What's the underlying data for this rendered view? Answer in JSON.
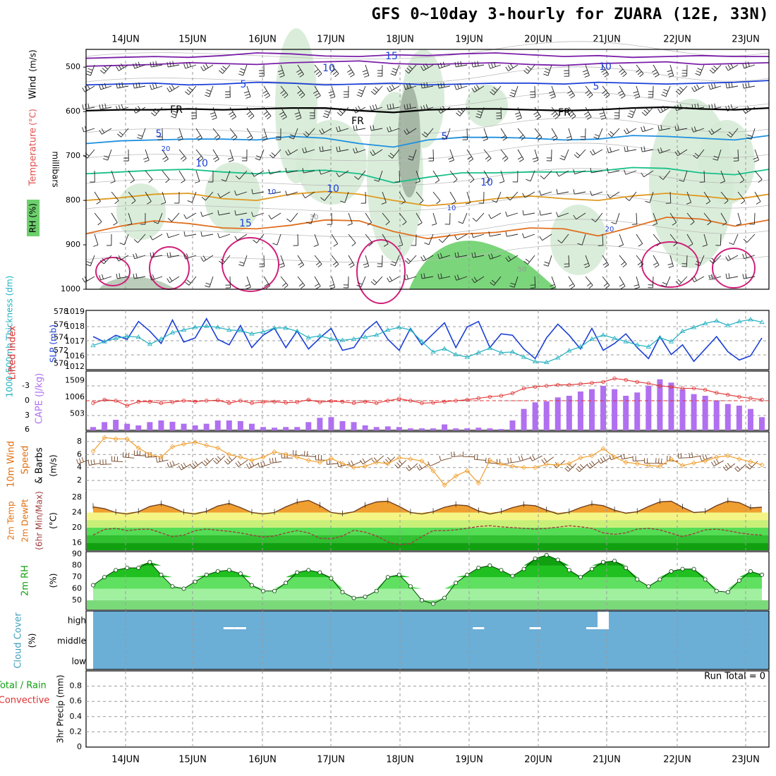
{
  "title": "GFS 0~10day 3-hourly for ZUARA (12E, 33N)",
  "colors": {
    "rh_fill": "#6dd06d",
    "temp_purple": "#7a1fa8",
    "temp_blue": "#1b3fd6",
    "temp_freezing": "#000000",
    "temp_lightblue": "#1e90e0",
    "temp_green": "#18c08a",
    "temp_orange": "#e09a20",
    "temp_darkorange": "#e07020",
    "temp_magenta": "#d0207a",
    "slp_line": "#1b3fd6",
    "thickness_line": "#20b0c0",
    "lifted_index": "#e03030",
    "cape_bars": "#b070f0",
    "wind_speed": "#f0a030",
    "barbs": "#704020",
    "temp_fill": "#f0a030",
    "dewpt_line": "#a04040",
    "rh2m_fill": "#10c010",
    "cloud_bg": "#6baed6",
    "grid": "#999999"
  },
  "chart_data": [
    {
      "panel": "upper-air",
      "type": "contour",
      "x_ticks": [
        "14JUN",
        "15JUN",
        "16JUN",
        "17JUN",
        "18JUN",
        "19JUN",
        "20JUN",
        "21JUN",
        "22JUN",
        "23JUN"
      ],
      "ylabel_parts": [
        "RH (%)",
        "Temperature",
        "(°C)",
        "Wind",
        "(m/s)"
      ],
      "ylabel_units": "millibars",
      "y_ticks": [
        500,
        600,
        700,
        800,
        900,
        1000
      ],
      "ylim": [
        460,
        1000
      ],
      "contour_labels": [
        "15",
        "10",
        "10",
        "5",
        "5",
        "FR",
        "FR",
        "FR",
        "5",
        "5",
        "10",
        "10",
        "10",
        "15",
        "20",
        "20",
        "10",
        "10",
        "30",
        "50",
        "30"
      ],
      "isotherms": [
        {
          "label": "15",
          "p": [
            480,
            478,
            476,
            478,
            474,
            468,
            470,
            475,
            476,
            472,
            474,
            470,
            468,
            472,
            476,
            474,
            478,
            476,
            474,
            476,
            476
          ]
        },
        {
          "label": "10",
          "p": [
            498,
            496,
            494,
            490,
            492,
            494,
            490,
            488,
            486,
            492,
            494,
            492,
            490,
            494,
            496,
            492,
            490,
            488,
            494,
            492,
            490
          ]
        },
        {
          "label": "5",
          "p": [
            540,
            538,
            536,
            540,
            538,
            534,
            536,
            540,
            538,
            536,
            540,
            538,
            536,
            536,
            538,
            534,
            536,
            538,
            536,
            534,
            530
          ]
        },
        {
          "label": "FR",
          "p": [
            598,
            596,
            596,
            594,
            596,
            594,
            592,
            592,
            598,
            602,
            596,
            594,
            594,
            596,
            598,
            596,
            592,
            590,
            594,
            596,
            592
          ]
        },
        {
          "label": "5",
          "p": [
            672,
            666,
            664,
            662,
            662,
            664,
            656,
            660,
            672,
            680,
            664,
            658,
            658,
            660,
            664,
            662,
            654,
            656,
            660,
            664,
            654
          ]
        },
        {
          "label": "10",
          "p": [
            740,
            736,
            732,
            730,
            736,
            740,
            734,
            732,
            740,
            760,
            748,
            738,
            738,
            736,
            736,
            734,
            726,
            728,
            738,
            742,
            730
          ]
        },
        {
          "label": "15",
          "p": [
            800,
            794,
            786,
            784,
            796,
            800,
            786,
            780,
            786,
            800,
            812,
            806,
            796,
            790,
            796,
            800,
            790,
            784,
            790,
            798,
            786
          ]
        },
        {
          "label": "20",
          "p": [
            875,
            858,
            846,
            852,
            862,
            864,
            856,
            844,
            846,
            870,
            886,
            876,
            872,
            862,
            864,
            880,
            860,
            838,
            842,
            858,
            844
          ]
        }
      ]
    },
    {
      "panel": "slp-thickness",
      "type": "line",
      "ylabel_left": "1000-500mb Thickness (dm)",
      "ylabel_right": "SLP (mb)",
      "y_ticks_left": [
        570,
        572,
        574,
        576,
        578
      ],
      "y_ticks_right": [
        1012,
        1016,
        1017,
        1018,
        1019
      ],
      "series": [
        {
          "name": "SLP (mb)",
          "values": [
            1017.2,
            1016.8,
            1017.3,
            1017.0,
            1018.3,
            1017.6,
            1016.7,
            1018.4,
            1016.8,
            1017.1,
            1018.5,
            1017.0,
            1016.6,
            1018.0,
            1016.4,
            1017.3,
            1017.8,
            1016.4,
            1017.6,
            1016.3,
            1017.1,
            1017.8,
            1016.2,
            1016.4,
            1017.6,
            1018.3,
            1017.0,
            1016.2,
            1017.8,
            1016.6,
            1017.4,
            1018.2,
            1016.4,
            1017.9,
            1018.3,
            1016.4,
            1017.4,
            1017.3,
            1016.3,
            1015.6,
            1017.1,
            1018.1,
            1017.3,
            1016.3,
            1017.8,
            1016.2,
            1016.7,
            1017.4,
            1016.4,
            1015.6,
            1017.2,
            1015.9,
            1016.6,
            1015.4,
            1016.3,
            1017.2,
            1016.1,
            1015.5,
            1015.8,
            1017.1
          ]
        },
        {
          "name": "Thickness (dm)",
          "values": [
            572.8,
            573.4,
            573.9,
            574.2,
            574.1,
            573.0,
            573.8,
            574.8,
            575.2,
            575.6,
            575.8,
            575.6,
            575.2,
            575.1,
            574.6,
            574.9,
            575.5,
            575.5,
            575.0,
            574.0,
            574.3,
            573.8,
            573.6,
            573.8,
            574.1,
            574.4,
            575.2,
            575.6,
            575.2,
            573.4,
            571.8,
            572.3,
            571.4,
            571.0,
            571.7,
            572.4,
            571.7,
            571.8,
            571.0,
            570.3,
            570.2,
            570.9,
            572.0,
            572.6,
            573.8,
            574.4,
            573.9,
            573.4,
            572.9,
            572.6,
            574.0,
            573.4,
            575.0,
            575.6,
            576.2,
            576.6,
            575.9,
            576.5,
            576.8,
            576.4
          ]
        }
      ]
    },
    {
      "panel": "cape-li",
      "type": "bar",
      "ylabel_left": "Lifted Index",
      "ylabel_right": "CAPE (J/kg)",
      "y_ticks_left": [
        "-3",
        "0",
        "3",
        "6"
      ],
      "y_ticks_right": [
        503,
        1006,
        1509
      ],
      "series": [
        {
          "name": "CAPE (J/kg)",
          "values": [
            100,
            250,
            320,
            200,
            150,
            250,
            300,
            260,
            200,
            150,
            200,
            300,
            300,
            280,
            200,
            100,
            80,
            100,
            100,
            250,
            380,
            400,
            280,
            250,
            150,
            100,
            120,
            100,
            60,
            60,
            60,
            180,
            60,
            60,
            80,
            60,
            40,
            300,
            650,
            850,
            880,
            1000,
            1050,
            1180,
            1250,
            1350,
            1250,
            1050,
            1150,
            1350,
            1550,
            1450,
            1250,
            1100,
            1050,
            900,
            800,
            750,
            650,
            400
          ]
        },
        {
          "name": "Lifted Index",
          "values": [
            0.5,
            -0.2,
            0,
            1,
            0.2,
            0.2,
            0.5,
            0.3,
            0,
            0.2,
            0,
            -0.1,
            0.5,
            0,
            0.5,
            0.3,
            0.2,
            0.4,
            0.3,
            -0.2,
            0.3,
            0.1,
            0.2,
            0.5,
            0.2,
            0.5,
            0,
            -0.4,
            0,
            0.5,
            0.4,
            0.2,
            0,
            -0.2,
            -0.5,
            -0.8,
            -1,
            -1.5,
            -2.5,
            -2.8,
            -3,
            -3.2,
            -3.2,
            -3.4,
            -3.6,
            -3.8,
            -4.5,
            -4.2,
            -3.8,
            -3.5,
            -3.0,
            -2.8,
            -2.5,
            -2.5,
            -2.2,
            -1.6,
            -1.2,
            -0.8,
            -0.5,
            -0.2
          ]
        }
      ]
    },
    {
      "panel": "wind10m",
      "type": "line",
      "ylabel": "10m Wind Speed & Barbs (m/s)",
      "y_ticks": [
        2,
        4,
        6,
        8
      ],
      "series": [
        {
          "name": "10m Wind Speed (m/s)",
          "values": [
            6.5,
            8.6,
            8.4,
            8.4,
            7.0,
            6.0,
            5.6,
            7.2,
            7.6,
            7.9,
            7.4,
            7.0,
            6.0,
            5.6,
            5.1,
            5.6,
            6.4,
            6.0,
            5.6,
            5.1,
            4.8,
            5.4,
            4.6,
            4.0,
            4.2,
            4.8,
            4.6,
            5.5,
            5.3,
            5.0,
            3.5,
            1.3,
            2.7,
            3.5,
            1.6,
            5.1,
            4.5,
            4.2,
            4.0,
            4.0,
            4.5,
            4.4,
            4.6,
            5.5,
            5.8,
            6.9,
            5.6,
            4.8,
            4.6,
            4.3,
            4.2,
            5.3,
            4.3,
            4.7,
            5.0,
            5.6,
            5.8,
            5.3,
            4.9,
            4.4
          ]
        }
      ]
    },
    {
      "panel": "temp2m",
      "type": "area",
      "ylabel": "2m Temp 2m DewPt (6hr Min/Max) (°C)",
      "y_ticks": [
        16,
        20,
        24,
        28
      ],
      "series": [
        {
          "name": "2m Temp",
          "values": [
            25.5,
            25.0,
            24.0,
            23.6,
            24.2,
            25.6,
            26.2,
            25.3,
            24.0,
            23.6,
            24.3,
            25.7,
            26.4,
            25.3,
            24.0,
            23.6,
            24.0,
            25.5,
            26.7,
            27.2,
            25.8,
            24.0,
            23.6,
            24.2,
            25.8,
            26.8,
            27.0,
            25.6,
            24.0,
            23.6,
            24.2,
            25.4,
            26.0,
            25.8,
            24.4,
            23.6,
            24.2,
            25.3,
            26.0,
            25.8,
            24.6,
            23.6,
            24.1,
            25.3,
            26.2,
            25.8,
            24.6,
            23.8,
            24.2,
            25.6,
            26.8,
            27.0,
            25.4,
            24.0,
            24.2,
            25.8,
            27.0,
            26.6,
            25.2,
            25.4
          ]
        },
        {
          "name": "2m DewPt",
          "values": [
            18.0,
            19.5,
            19.8,
            19.2,
            19.5,
            19.6,
            18.6,
            17.6,
            18.0,
            19.2,
            19.6,
            19.3,
            19.0,
            18.6,
            18.0,
            17.5,
            17.8,
            18.6,
            19.2,
            18.6,
            17.2,
            17.0,
            17.8,
            19.3,
            18.8,
            17.8,
            16.2,
            15.4,
            15.8,
            17.6,
            19.2,
            19.2,
            19.4,
            19.8,
            20.3,
            20.5,
            20.2,
            20.0,
            19.8,
            19.6,
            19.8,
            20.1,
            20.5,
            20.2,
            19.8,
            18.6,
            18.2,
            18.6,
            19.6,
            19.8,
            19.4,
            18.5,
            17.6,
            18.4,
            19.4,
            19.6,
            19.2,
            18.6,
            18.2,
            18.0
          ]
        }
      ]
    },
    {
      "panel": "rh2m",
      "type": "area",
      "ylabel": "2m RH (%)",
      "y_ticks": [
        50,
        60,
        70,
        80,
        90
      ],
      "series": [
        {
          "name": "2m RH (%)",
          "values": [
            63,
            70,
            76,
            78,
            78,
            83,
            72,
            62,
            60,
            66,
            72,
            75,
            76,
            73,
            63,
            58,
            58,
            65,
            74,
            76,
            74,
            69,
            57,
            52,
            53,
            58,
            70,
            72,
            62,
            50,
            47,
            52,
            65,
            72,
            78,
            80,
            76,
            71,
            77,
            86,
            89,
            85,
            76,
            70,
            77,
            83,
            84,
            78,
            68,
            62,
            68,
            75,
            77,
            77,
            68,
            58,
            57,
            67,
            75,
            72
          ]
        }
      ]
    },
    {
      "panel": "cloud-cover",
      "type": "bar",
      "ylabel": "Cloud Cover (%)",
      "y_ticks": [
        "high",
        "middle",
        "low"
      ],
      "series": [
        {
          "name": "high cloud",
          "values": [
            0,
            0,
            0,
            0,
            0,
            0,
            0,
            0,
            0,
            0,
            0,
            0,
            5,
            8,
            0,
            0,
            0,
            0,
            0,
            0,
            0,
            0,
            0,
            0,
            0,
            0,
            0,
            0,
            0,
            0,
            0,
            0,
            0,
            0,
            5,
            0,
            0,
            0,
            0,
            8,
            0,
            0,
            0,
            0,
            10,
            100,
            0,
            0,
            0,
            0,
            0,
            0,
            0,
            0,
            0,
            0,
            0,
            0,
            0,
            0
          ]
        }
      ]
    },
    {
      "panel": "precip",
      "type": "bar",
      "ylabel": "3hr Precip (mm)",
      "legend": [
        "Total / Rain",
        "Convective"
      ],
      "run_total_label": "Run Total = 0",
      "y_ticks": [
        "0",
        "0.2",
        "0.4",
        "0.6",
        "0.8"
      ],
      "ylim": [
        0,
        1
      ],
      "series": [
        {
          "name": "Total / Rain",
          "values": [
            0,
            0,
            0,
            0,
            0,
            0,
            0,
            0,
            0,
            0,
            0,
            0,
            0,
            0,
            0,
            0,
            0,
            0,
            0,
            0,
            0,
            0,
            0,
            0,
            0,
            0,
            0,
            0,
            0,
            0,
            0,
            0,
            0,
            0,
            0,
            0,
            0,
            0,
            0,
            0,
            0,
            0,
            0,
            0,
            0,
            0,
            0,
            0,
            0,
            0,
            0,
            0,
            0,
            0,
            0,
            0,
            0,
            0,
            0,
            0
          ]
        }
      ]
    }
  ]
}
